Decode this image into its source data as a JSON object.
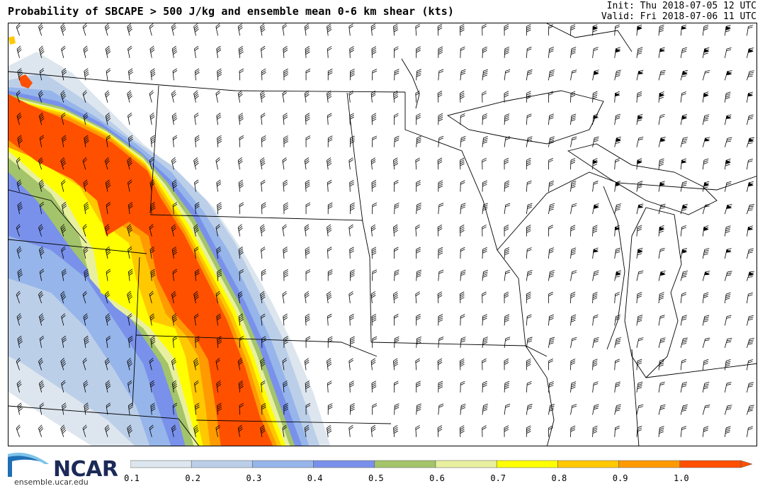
{
  "header": {
    "title": "Probability of SBCAPE > 500 J/kg and ensemble mean 0-6 km shear (kts)",
    "init": "Init: Thu 2018-07-05 12 UTC",
    "valid": "Valid: Fri 2018-07-06 11 UTC"
  },
  "branding": {
    "logo_text": "NCAR",
    "url": "ensemble.ucar.edu",
    "logo_icon": "ncar-swoosh-icon"
  },
  "colorbar": {
    "tick_labels": [
      "0.1",
      "0.2",
      "0.3",
      "0.4",
      "0.5",
      "0.6",
      "0.7",
      "0.8",
      "0.9",
      "1.0"
    ],
    "colors": [
      "#dde6ee",
      "#bccfe9",
      "#96b5ea",
      "#7991ea",
      "#a3c46a",
      "#e8f0a0",
      "#ffff00",
      "#ffc800",
      "#ff9a00",
      "#ff5000"
    ],
    "extend": "max"
  },
  "colors": {
    "high_prob": "#ff5000",
    "wind_barb": "#000000",
    "boundaries": "#000000"
  }
}
